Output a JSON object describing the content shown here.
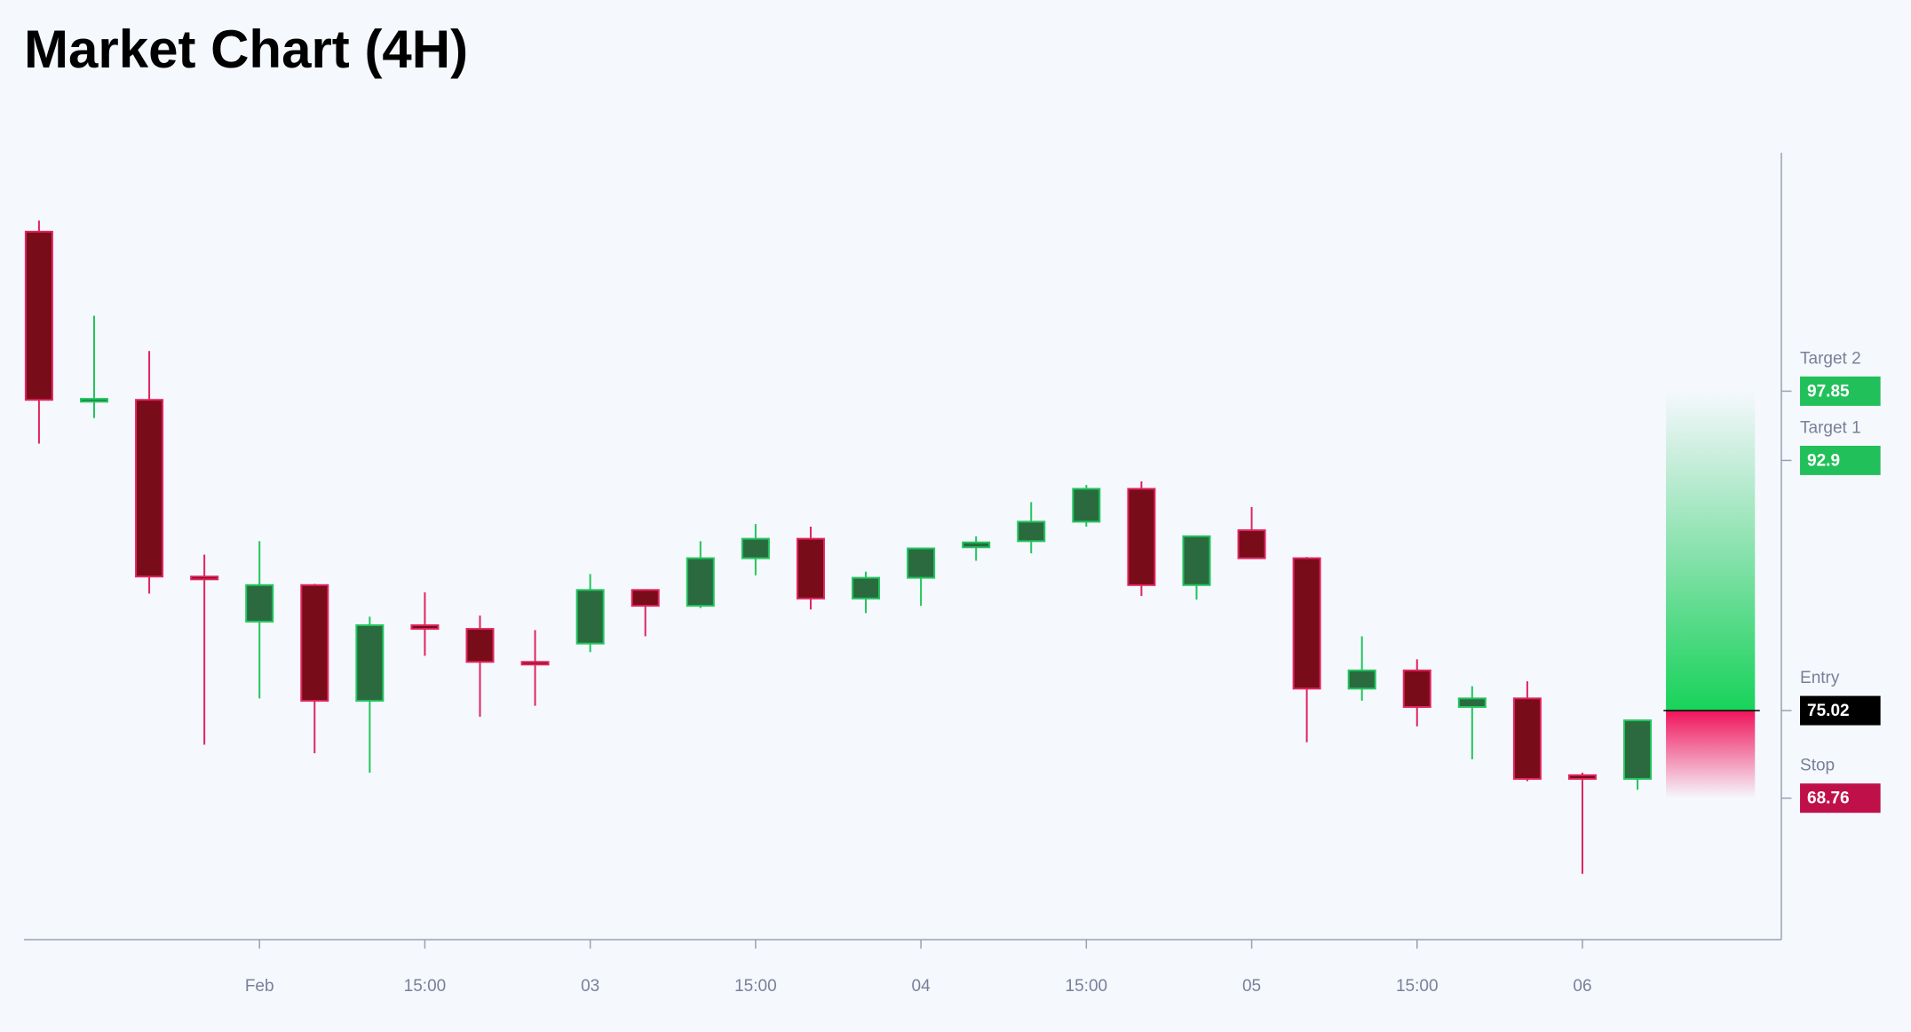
{
  "chart_data": {
    "type": "candlestick",
    "title": "Market Chart (4H)",
    "categories": [
      null,
      null,
      null,
      null,
      "Feb",
      null,
      null,
      "15:00",
      null,
      null,
      "03",
      null,
      null,
      "15:00",
      null,
      null,
      "04",
      null,
      null,
      "15:00",
      null,
      null,
      "05",
      null,
      null,
      "15:00",
      null,
      null,
      "06",
      null
    ],
    "open": [
      109.25,
      97.1,
      97.23,
      84.6,
      81.38,
      83.99,
      75.72,
      81.12,
      80.86,
      78.5,
      79.81,
      83.64,
      82.51,
      85.91,
      87.3,
      83.03,
      84.51,
      86.69,
      87.13,
      88.52,
      90.87,
      83.99,
      87.91,
      85.91,
      76.59,
      77.89,
      75.28,
      75.89,
      70.4,
      70.14
    ],
    "high": [
      110.04,
      103.24,
      100.72,
      86.17,
      87.13,
      84.08,
      81.73,
      83.47,
      81.81,
      80.77,
      84.78,
      83.7,
      87.13,
      88.35,
      88.17,
      84.95,
      86.61,
      87.48,
      89.92,
      91.14,
      91.4,
      87.48,
      89.57,
      86.0,
      80.33,
      78.68,
      76.76,
      77.11,
      70.58,
      74.32
    ],
    "low": [
      94.1,
      95.93,
      83.38,
      72.58,
      75.89,
      71.97,
      70.58,
      78.94,
      74.58,
      75.37,
      79.2,
      80.33,
      82.34,
      84.69,
      82.25,
      81.99,
      82.51,
      85.73,
      86.26,
      88.17,
      83.21,
      82.95,
      85.91,
      72.76,
      75.72,
      73.89,
      71.54,
      69.97,
      63.35,
      69.36
    ],
    "close": [
      97.23,
      97.3,
      84.6,
      84.4,
      83.99,
      75.72,
      81.12,
      80.86,
      78.5,
      78.4,
      83.64,
      82.51,
      85.91,
      87.3,
      83.03,
      84.51,
      86.61,
      87.04,
      88.52,
      90.87,
      83.99,
      87.48,
      85.91,
      76.59,
      77.89,
      75.28,
      75.89,
      70.14,
      70.14,
      74.32
    ],
    "up_color": "#22c55e",
    "up_fill": "#2a6a3e",
    "down_color": "#e0245e",
    "down_fill": "#780c18",
    "ylim": [
      58.64,
      114.92
    ],
    "levels": [
      {
        "name": "Target 2",
        "value": 97.85,
        "color": "#22c05a"
      },
      {
        "name": "Target 1",
        "value": 92.9,
        "color": "#22c05a"
      },
      {
        "name": "Entry",
        "value": 75.02,
        "color": "#000000"
      },
      {
        "name": "Stop",
        "value": 68.76,
        "color": "#c0104a"
      }
    ]
  }
}
